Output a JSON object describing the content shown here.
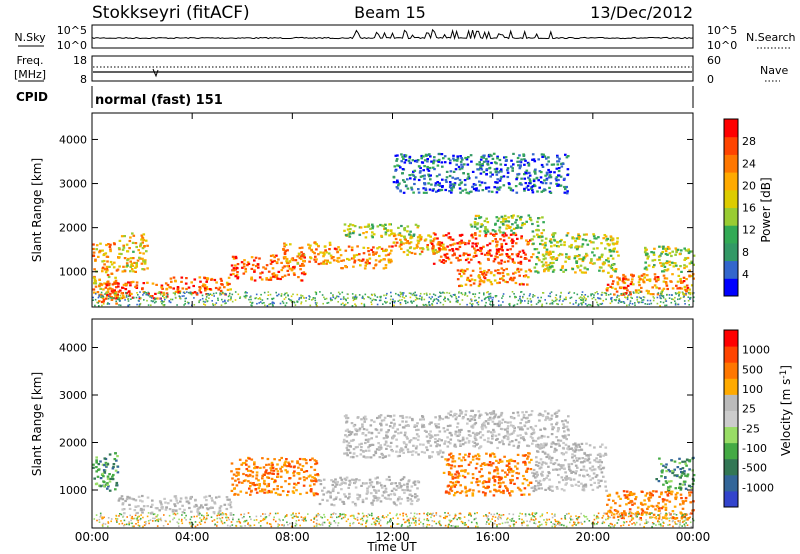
{
  "header": {
    "station": "Stokkseyri (fitACF)",
    "beam": "Beam 15",
    "date": "13/Dec/2012"
  },
  "noise_panel": {
    "left_label": "N.Sky",
    "left_ticks": [
      "10^5",
      "10^0"
    ],
    "right_ticks": [
      "10^5",
      "10^0"
    ],
    "right_label": "N.Search"
  },
  "freq_panel": {
    "left_label_1": "Freq.",
    "left_label_2": "[MHz]",
    "left_ticks": [
      "18",
      "8"
    ],
    "right_ticks": [
      "60",
      "0"
    ],
    "right_label": "Nave"
  },
  "cpid_panel": {
    "left_label": "CPID",
    "mode": "normal (fast) 151"
  },
  "x_axis": {
    "tick_labels": [
      "00:00",
      "04:00",
      "08:00",
      "12:00",
      "16:00",
      "20:00",
      "00:00"
    ],
    "label": "Time UT"
  },
  "power_panel": {
    "ylabel": "Slant Range [km]",
    "colorbar_label": "Power [dB]",
    "colorbar_ticks": [
      "28",
      "24",
      "20",
      "16",
      "12",
      "8",
      "4"
    ],
    "colorbar_colors": [
      "#0000ff",
      "#3366cc",
      "#339966",
      "#33aa55",
      "#99cc33",
      "#ddcc00",
      "#ffaa00",
      "#ff7700",
      "#ff4400",
      "#ff0000"
    ]
  },
  "velocity_panel": {
    "ylabel": "Slant Range [km]",
    "colorbar_label": "Velocity [m s",
    "colorbar_label_sup": "-1",
    "colorbar_label_end": "]",
    "colorbar_ticks": [
      "1000",
      "500",
      "100",
      "25",
      "-25",
      "-100",
      "-500",
      "-1000"
    ],
    "colorbar_colors": [
      "#3344cc",
      "#336699",
      "#337755",
      "#44aa44",
      "#99dd66",
      "#cccccc",
      "#bbbbbb",
      "#ffaa00",
      "#ff7700",
      "#ff4400",
      "#ff0000"
    ]
  },
  "chart_data": {
    "type": "heatmap",
    "x_range_hours": [
      0,
      24
    ],
    "y_range_km": [
      200,
      4600
    ],
    "y_ticks_km": [
      1000,
      2000,
      3000,
      4000
    ],
    "power_bands": [
      {
        "t0": 0.0,
        "t1": 1.0,
        "r0": 300,
        "r1": 1700,
        "level": 0.7
      },
      {
        "t0": 0.5,
        "t1": 3.0,
        "r0": 400,
        "r1": 800,
        "level": 0.85
      },
      {
        "t0": 1.0,
        "t1": 2.2,
        "r0": 1000,
        "r1": 1900,
        "level": 0.6
      },
      {
        "t0": 3.0,
        "t1": 5.5,
        "r0": 500,
        "r1": 900,
        "level": 0.8
      },
      {
        "t0": 5.5,
        "t1": 8.5,
        "r0": 800,
        "r1": 1400,
        "level": 0.85
      },
      {
        "t0": 7.5,
        "t1": 9.5,
        "r0": 1200,
        "r1": 1700,
        "level": 0.7
      },
      {
        "t0": 9.5,
        "t1": 12.0,
        "r0": 1100,
        "r1": 1600,
        "level": 0.75
      },
      {
        "t0": 10.0,
        "t1": 13.0,
        "r0": 1800,
        "r1": 2100,
        "level": 0.45
      },
      {
        "t0": 12.0,
        "t1": 14.0,
        "r0": 1400,
        "r1": 1900,
        "level": 0.65
      },
      {
        "t0": 13.5,
        "t1": 17.5,
        "r0": 1200,
        "r1": 1900,
        "level": 0.9
      },
      {
        "t0": 14.5,
        "t1": 17.5,
        "r0": 700,
        "r1": 1100,
        "level": 0.75
      },
      {
        "t0": 15.0,
        "t1": 18.0,
        "r0": 1900,
        "r1": 2300,
        "level": 0.4
      },
      {
        "t0": 17.5,
        "t1": 21.0,
        "r0": 1000,
        "r1": 1900,
        "level": 0.5
      },
      {
        "t0": 20.5,
        "t1": 24.0,
        "r0": 500,
        "r1": 1000,
        "level": 0.75
      },
      {
        "t0": 22.0,
        "t1": 24.0,
        "r0": 1000,
        "r1": 1600,
        "level": 0.45
      },
      {
        "t0": 12.0,
        "t1": 19.0,
        "r0": 2800,
        "r1": 3700,
        "level": 0.15
      }
    ],
    "velocity_bands": [
      {
        "t0": 0.0,
        "t1": 1.0,
        "r0": 1000,
        "r1": 1800,
        "kind": "neg_green"
      },
      {
        "t0": 1.0,
        "t1": 5.5,
        "r0": 500,
        "r1": 900,
        "kind": "ground"
      },
      {
        "t0": 5.5,
        "t1": 9.0,
        "r0": 900,
        "r1": 1700,
        "kind": "pos_orange"
      },
      {
        "t0": 9.0,
        "t1": 13.0,
        "r0": 700,
        "r1": 1300,
        "kind": "ground"
      },
      {
        "t0": 10.0,
        "t1": 14.0,
        "r0": 1700,
        "r1": 2600,
        "kind": "ground"
      },
      {
        "t0": 14.0,
        "t1": 17.5,
        "r0": 900,
        "r1": 1800,
        "kind": "pos_orange"
      },
      {
        "t0": 14.0,
        "t1": 19.0,
        "r0": 1900,
        "r1": 2700,
        "kind": "ground"
      },
      {
        "t0": 17.5,
        "t1": 20.5,
        "r0": 1000,
        "r1": 2000,
        "kind": "ground"
      },
      {
        "t0": 20.5,
        "t1": 24.0,
        "r0": 400,
        "r1": 1000,
        "kind": "pos_orange"
      },
      {
        "t0": 22.5,
        "t1": 24.0,
        "r0": 1000,
        "r1": 1700,
        "kind": "neg_green"
      }
    ]
  }
}
